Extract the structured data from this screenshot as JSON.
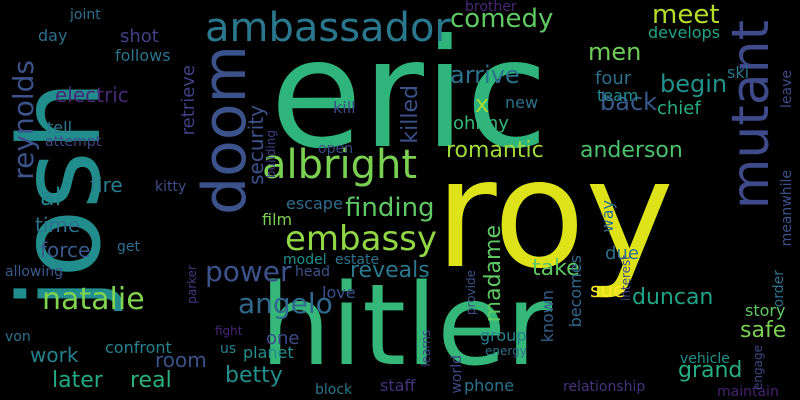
{
  "words": [
    {
      "text": "eric",
      "color": "#2fb47c",
      "size": 150,
      "v": false
    },
    {
      "text": "roy",
      "color": "#dde318",
      "size": 150,
      "v": false
    },
    {
      "text": "josh",
      "color": "#218e8d",
      "size": 112,
      "v": true
    },
    {
      "text": "hitler",
      "color": "#35b779",
      "size": 112,
      "v": false
    },
    {
      "text": "doom",
      "color": "#3b528b",
      "size": 60,
      "v": true
    },
    {
      "text": "mutant",
      "color": "#3e4a89",
      "size": 52,
      "v": true
    },
    {
      "text": "ambassador",
      "color": "#2a788e",
      "size": 40,
      "v": false
    },
    {
      "text": "albright",
      "color": "#7ad151",
      "size": 40,
      "v": false
    },
    {
      "text": "embassy",
      "color": "#90d743",
      "size": 34,
      "v": false
    },
    {
      "text": "natalie",
      "color": "#7fd34e",
      "size": 30,
      "v": false
    },
    {
      "text": "power",
      "color": "#3b528b",
      "size": 28,
      "v": false
    },
    {
      "text": "angelo",
      "color": "#31688e",
      "size": 28,
      "v": false
    },
    {
      "text": "reynolds",
      "color": "#3b528b",
      "size": 28,
      "v": true
    },
    {
      "text": "comedy",
      "color": "#5ec962",
      "size": 26,
      "v": false
    },
    {
      "text": "meet",
      "color": "#b5de2b",
      "size": 26,
      "v": false
    },
    {
      "text": "finding",
      "color": "#5ec962",
      "size": 26,
      "v": false
    },
    {
      "text": "men",
      "color": "#6ece58",
      "size": 24,
      "v": false
    },
    {
      "text": "back",
      "color": "#38598c",
      "size": 24,
      "v": false
    },
    {
      "text": "arrive",
      "color": "#2c728e",
      "size": 24,
      "v": false
    },
    {
      "text": "begin",
      "color": "#21918c",
      "size": 24,
      "v": false
    },
    {
      "text": "romantic",
      "color": "#a0da39",
      "size": 22,
      "v": false
    },
    {
      "text": "anderson",
      "color": "#4ac16d",
      "size": 22,
      "v": false
    },
    {
      "text": "killed",
      "color": "#3b528b",
      "size": 22,
      "v": true
    },
    {
      "text": "madame",
      "color": "#5ec962",
      "size": 22,
      "v": true
    },
    {
      "text": "take",
      "color": "#5ec962",
      "size": 22,
      "v": false
    },
    {
      "text": "reveals",
      "color": "#2a788e",
      "size": 22,
      "v": false
    },
    {
      "text": "duncan",
      "color": "#20a386",
      "size": 22,
      "v": false
    },
    {
      "text": "safe",
      "color": "#7ad151",
      "size": 22,
      "v": false
    },
    {
      "text": "grand",
      "color": "#26ad81",
      "size": 22,
      "v": false
    },
    {
      "text": "later",
      "color": "#22a884",
      "size": 22,
      "v": false
    },
    {
      "text": "real",
      "color": "#2ab07f",
      "size": 22,
      "v": false
    },
    {
      "text": "betty",
      "color": "#218f8d",
      "size": 22,
      "v": false
    },
    {
      "text": "sue",
      "color": "#fde725",
      "size": 20,
      "v": false
    },
    {
      "text": "room",
      "color": "#3b528b",
      "size": 20,
      "v": false
    },
    {
      "text": "work",
      "color": "#26818e",
      "size": 20,
      "v": false
    },
    {
      "text": "force",
      "color": "#38598c",
      "size": 20,
      "v": false
    },
    {
      "text": "electric",
      "color": "#482878",
      "size": 20,
      "v": false
    },
    {
      "text": "fire",
      "color": "#287d8e",
      "size": 20,
      "v": false
    },
    {
      "text": "time",
      "color": "#2c728e",
      "size": 20,
      "v": false
    },
    {
      "text": "al",
      "color": "#26828e",
      "size": 24,
      "v": false
    },
    {
      "text": "x",
      "color": "#a2da37",
      "size": 24,
      "v": false
    },
    {
      "text": "security",
      "color": "#3b528b",
      "size": 20,
      "v": true
    },
    {
      "text": "retrieve",
      "color": "#433e85",
      "size": 18,
      "v": true
    },
    {
      "text": "johnny",
      "color": "#35b779",
      "size": 18,
      "v": false
    },
    {
      "text": "shot",
      "color": "#424086",
      "size": 18,
      "v": false
    },
    {
      "text": "follows",
      "color": "#2c728e",
      "size": 16,
      "v": false
    },
    {
      "text": "four",
      "color": "#2e6e8e",
      "size": 18,
      "v": false
    },
    {
      "text": "team",
      "color": "#228b8d",
      "size": 16,
      "v": false
    },
    {
      "text": "chief",
      "color": "#26ad81",
      "size": 18,
      "v": false
    },
    {
      "text": "ski",
      "color": "#2a788e",
      "size": 16,
      "v": false
    },
    {
      "text": "develops",
      "color": "#20a486",
      "size": 16,
      "v": false
    },
    {
      "text": "kill",
      "color": "#3e4989",
      "size": 16,
      "v": false
    },
    {
      "text": "new",
      "color": "#2c728e",
      "size": 16,
      "v": false
    },
    {
      "text": "open",
      "color": "#3e4a89",
      "size": 14,
      "v": false
    },
    {
      "text": "known",
      "color": "#355f8d",
      "size": 16,
      "v": true
    },
    {
      "text": "becomes",
      "color": "#31688e",
      "size": 16,
      "v": true
    },
    {
      "text": "way",
      "color": "#2e6e8e",
      "size": 16,
      "v": true
    },
    {
      "text": "due",
      "color": "#2e6f8e",
      "size": 18,
      "v": false
    },
    {
      "text": "escape",
      "color": "#2f6c8e",
      "size": 16,
      "v": false
    },
    {
      "text": "film",
      "color": "#7ad151",
      "size": 16,
      "v": false
    },
    {
      "text": "model",
      "color": "#218f8d",
      "size": 14,
      "v": false
    },
    {
      "text": "estate",
      "color": "#2c728e",
      "size": 14,
      "v": false
    },
    {
      "text": "love",
      "color": "#3b528b",
      "size": 16,
      "v": false
    },
    {
      "text": "group",
      "color": "#26828e",
      "size": 16,
      "v": false
    },
    {
      "text": "story",
      "color": "#5ec962",
      "size": 16,
      "v": false
    },
    {
      "text": "one",
      "color": "#3e4c8a",
      "size": 18,
      "v": false
    },
    {
      "text": "planet",
      "color": "#218f8d",
      "size": 16,
      "v": false
    },
    {
      "text": "confront",
      "color": "#26828e",
      "size": 16,
      "v": false
    },
    {
      "text": "staff",
      "color": "#46327e",
      "size": 16,
      "v": false
    },
    {
      "text": "block",
      "color": "#2b758e",
      "size": 14,
      "v": false
    },
    {
      "text": "phone",
      "color": "#2c728e",
      "size": 16,
      "v": false
    },
    {
      "text": "relationship",
      "color": "#46327e",
      "size": 14,
      "v": false
    },
    {
      "text": "maintain",
      "color": "#482071",
      "size": 14,
      "v": false
    },
    {
      "text": "vehicle",
      "color": "#21918c",
      "size": 14,
      "v": false
    },
    {
      "text": "kitty",
      "color": "#3e4c8a",
      "size": 14,
      "v": false
    },
    {
      "text": "tell",
      "color": "#2a788e",
      "size": 16,
      "v": false
    },
    {
      "text": "attempt",
      "color": "#3e4a89",
      "size": 14,
      "v": false
    },
    {
      "text": "day",
      "color": "#2e6e8e",
      "size": 16,
      "v": false
    },
    {
      "text": "joint",
      "color": "#2e6f8e",
      "size": 14,
      "v": false
    },
    {
      "text": "allowing",
      "color": "#38598c",
      "size": 14,
      "v": false
    },
    {
      "text": "get",
      "color": "#2e6e8e",
      "size": 14,
      "v": false
    },
    {
      "text": "von",
      "color": "#2c728e",
      "size": 14,
      "v": false
    },
    {
      "text": "us",
      "color": "#26828e",
      "size": 14,
      "v": false
    },
    {
      "text": "provide",
      "color": "#3b528b",
      "size": 12,
      "v": true
    },
    {
      "text": "world",
      "color": "#3e4a89",
      "size": 14,
      "v": true
    },
    {
      "text": "learns",
      "color": "#3e4989",
      "size": 12,
      "v": true
    },
    {
      "text": "interest",
      "color": "#3e4989",
      "size": 12,
      "v": true
    },
    {
      "text": "engage",
      "color": "#3e4989",
      "size": 12,
      "v": true
    },
    {
      "text": "order",
      "color": "#2c728e",
      "size": 14,
      "v": true
    },
    {
      "text": "meanwhile",
      "color": "#3b528b",
      "size": 14,
      "v": true
    },
    {
      "text": "leave",
      "color": "#3e4a89",
      "size": 14,
      "v": true
    },
    {
      "text": "building",
      "color": "#423f85",
      "size": 12,
      "v": true
    },
    {
      "text": "parker",
      "color": "#443983",
      "size": 12,
      "v": true
    },
    {
      "text": "brother",
      "color": "#482878",
      "size": 14,
      "v": false
    },
    {
      "text": "fight",
      "color": "#482475",
      "size": 12,
      "v": false
    },
    {
      "text": "head",
      "color": "#3b528b",
      "size": 14,
      "v": false
    },
    {
      "text": "energy",
      "color": "#2d708e",
      "size": 12,
      "v": false
    }
  ]
}
